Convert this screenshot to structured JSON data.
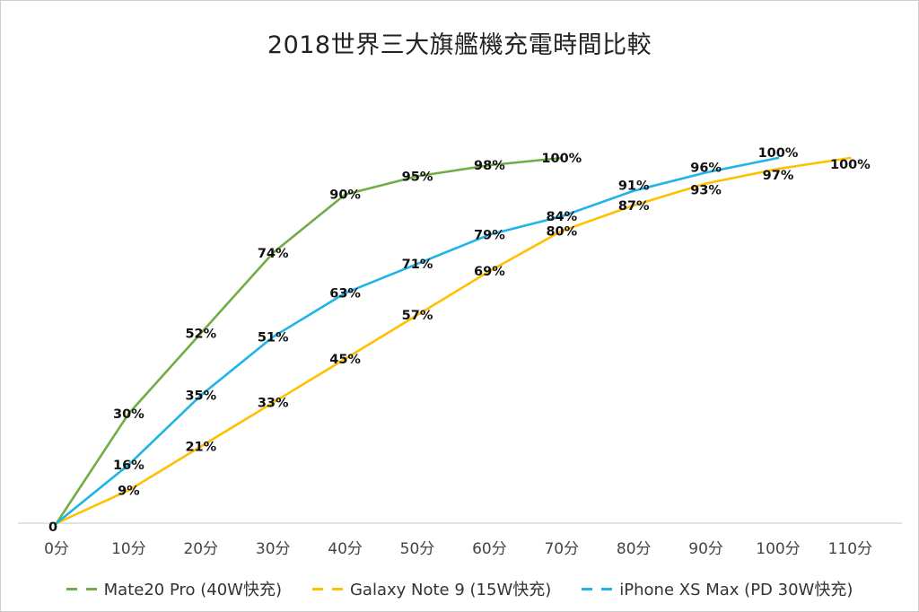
{
  "chart_data": {
    "type": "line",
    "title": "2018世界三大旗艦機充電時間比較",
    "categories": [
      "0分",
      "10分",
      "20分",
      "30分",
      "40分",
      "50分",
      "60分",
      "70分",
      "80分",
      "90分",
      "100分",
      "110分"
    ],
    "x": [
      0,
      10,
      20,
      30,
      40,
      50,
      60,
      70,
      80,
      90,
      100,
      110
    ],
    "origin_label": "0",
    "ylim": [
      0,
      100
    ],
    "grid": false,
    "legend_position": "bottom",
    "series": [
      {
        "name": "Mate20 Pro (40W快充)",
        "color": "#70ad47",
        "x": [
          0,
          10,
          20,
          30,
          40,
          50,
          60,
          70
        ],
        "values": [
          0,
          30,
          52,
          74,
          90,
          95,
          98,
          100
        ],
        "labels": [
          "",
          "30%",
          "52%",
          "74%",
          "90%",
          "95%",
          "98%",
          "100%"
        ]
      },
      {
        "name": "Galaxy Note 9 (15W快充)",
        "color": "#ffc000",
        "x": [
          0,
          10,
          20,
          30,
          40,
          50,
          60,
          70,
          80,
          90,
          100,
          110
        ],
        "values": [
          0,
          9,
          21,
          33,
          45,
          57,
          69,
          80,
          87,
          93,
          97,
          100
        ],
        "labels": [
          "",
          "9%",
          "21%",
          "33%",
          "45%",
          "57%",
          "69%",
          "80%",
          "87%",
          "93%",
          "97%",
          "100%"
        ]
      },
      {
        "name": "iPhone XS Max (PD 30W快充)",
        "color": "#1eb4e6",
        "x": [
          0,
          10,
          20,
          30,
          40,
          50,
          60,
          70,
          80,
          90,
          100
        ],
        "values": [
          0,
          16,
          35,
          51,
          63,
          71,
          79,
          84,
          91,
          96,
          100
        ],
        "labels": [
          "",
          "16%",
          "35%",
          "51%",
          "63%",
          "71%",
          "79%",
          "84%",
          "91%",
          "96%",
          "100%"
        ]
      }
    ]
  }
}
